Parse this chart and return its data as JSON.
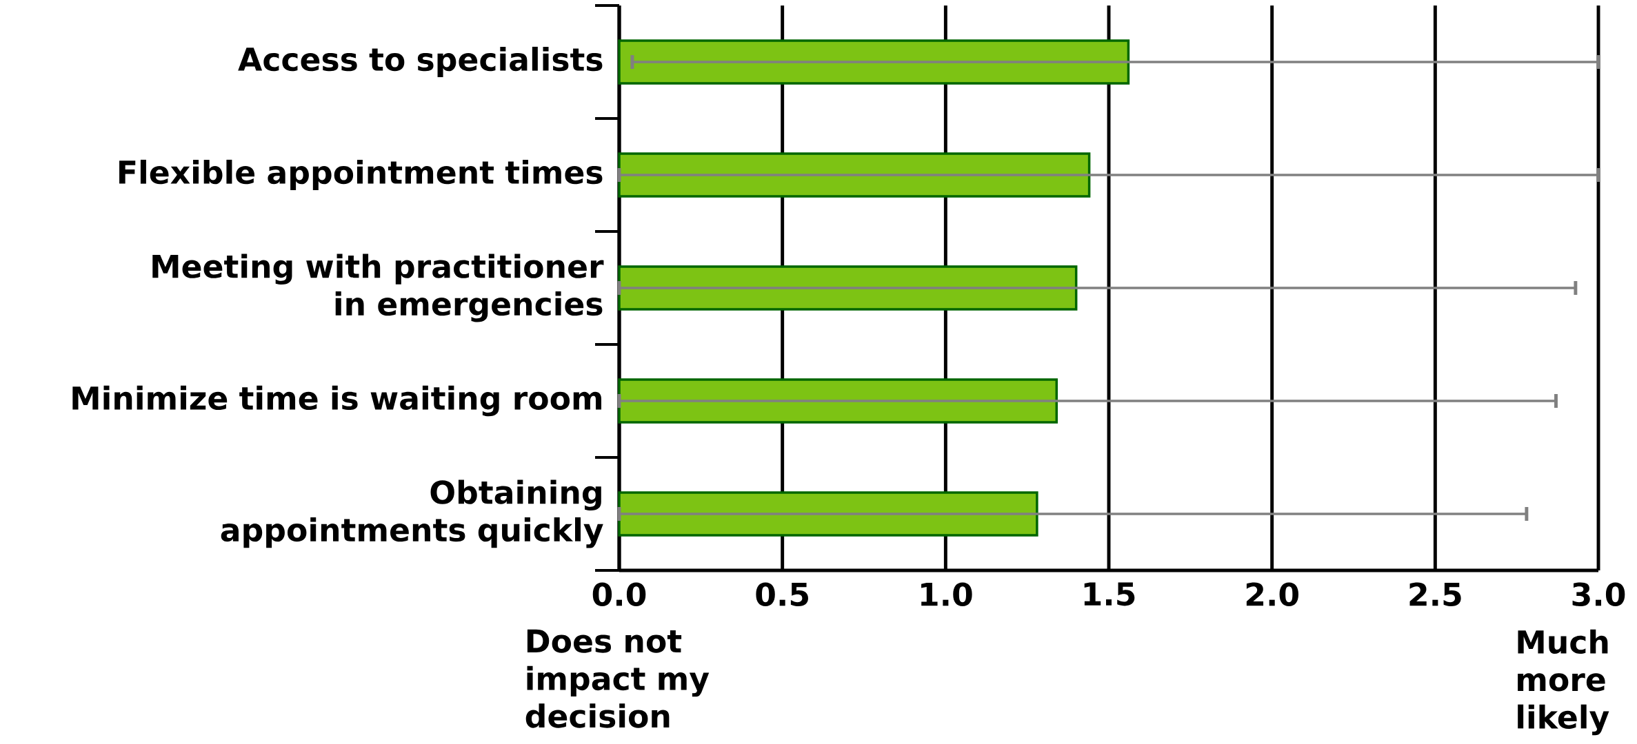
{
  "chart_data": {
    "type": "bar",
    "orientation": "horizontal",
    "categories": [
      "Access to specialists",
      "Flexible appointment times",
      "Meeting with practitioner in emergencies",
      "Minimize time is waiting room",
      "Obtaining appointments quickly"
    ],
    "values": [
      1.56,
      1.44,
      1.4,
      1.34,
      1.28
    ],
    "errors": [
      [
        0.04,
        3.0
      ],
      [
        0,
        3.0
      ],
      [
        0,
        2.93
      ],
      [
        0,
        2.87
      ],
      [
        0,
        2.78
      ]
    ],
    "color": "#7dc314",
    "xlim": [
      0,
      3
    ],
    "xticks": [
      {
        "value": 0,
        "label": "0.0"
      },
      0.5,
      {
        "value": 1,
        "label": "1.0"
      },
      1.5,
      {
        "value": 2,
        "label": "2.0"
      },
      2.5,
      {
        "value": 3,
        "label": "3.0"
      }
    ],
    "grid": "x",
    "annotations": [
      "Does not impact my decision",
      "Much more likely"
    ]
  }
}
